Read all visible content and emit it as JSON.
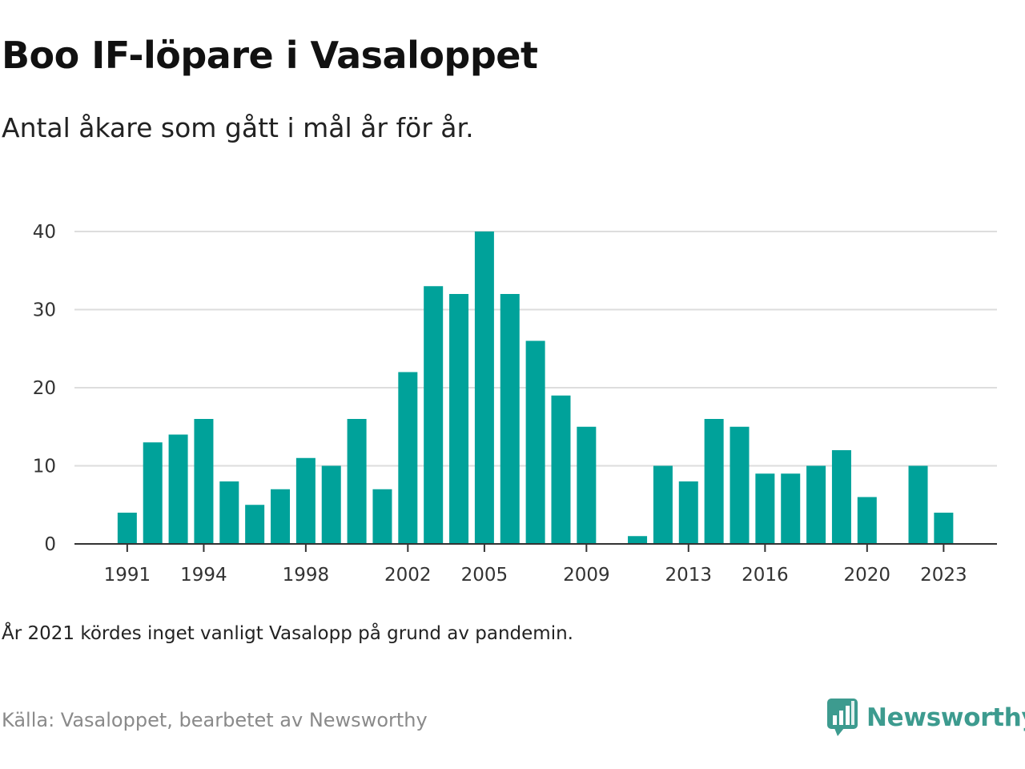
{
  "title": "Boo IF-löpare i Vasaloppet",
  "subtitle": "Antal åkare som gått i mål år för år.",
  "note": "År 2021 kördes inget vanligt Vasalopp på grund av pandemin.",
  "source": "Källa: Vasaloppet, bearbetet av Newsworthy",
  "logo_text": "Newsworthy",
  "colors": {
    "bar": "#00a29a",
    "grid": "#dddddd",
    "axis": "#333333",
    "logo": "#3d9b8f"
  },
  "chart_data": {
    "type": "bar",
    "title": "",
    "xlabel": "",
    "ylabel": "",
    "x": [
      1990,
      1991,
      1992,
      1993,
      1994,
      1995,
      1996,
      1997,
      1998,
      1999,
      2000,
      2001,
      2002,
      2003,
      2004,
      2005,
      2006,
      2007,
      2008,
      2009,
      2010,
      2011,
      2012,
      2013,
      2014,
      2015,
      2016,
      2017,
      2018,
      2019,
      2020,
      2021,
      2022,
      2023
    ],
    "values": [
      null,
      4,
      13,
      14,
      16,
      8,
      5,
      7,
      11,
      10,
      16,
      7,
      22,
      33,
      32,
      40,
      32,
      26,
      19,
      15,
      null,
      1,
      10,
      8,
      16,
      15,
      9,
      9,
      10,
      12,
      6,
      null,
      10,
      4
    ],
    "x_tick_labels": [
      "1991",
      "1994",
      "1998",
      "2002",
      "2005",
      "2009",
      "2013",
      "2016",
      "2020",
      "2023"
    ],
    "y_tick_labels": [
      "0",
      "10",
      "20",
      "30",
      "40"
    ],
    "ylim": [
      0,
      40
    ],
    "grid": true,
    "legend": "none"
  }
}
